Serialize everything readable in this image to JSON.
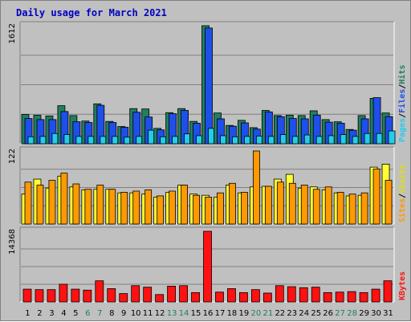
{
  "chart_data": {
    "type": "bar",
    "title": "Daily usage for March 2021",
    "categories": [
      "1",
      "2",
      "3",
      "4",
      "5",
      "6",
      "7",
      "8",
      "9",
      "10",
      "11",
      "12",
      "13",
      "14",
      "15",
      "16",
      "17",
      "18",
      "19",
      "20",
      "21",
      "22",
      "23",
      "24",
      "25",
      "26",
      "27",
      "28",
      "29",
      "30",
      "31"
    ],
    "weekend_days": [
      "6",
      "7",
      "13",
      "14",
      "20",
      "21",
      "27",
      "28"
    ],
    "panels": [
      {
        "name": "hits-files-pages",
        "ymax_label": "1612",
        "ymax": 1612,
        "axis_labels": [
          "Pages",
          "Files",
          "Hits"
        ],
        "series": [
          {
            "name": "Hits",
            "color": "#1f7f5f",
            "values": [
              400,
              390,
              380,
              520,
              385,
              310,
              545,
              305,
              235,
              480,
              475,
              210,
              425,
              480,
              305,
              1612,
              420,
              250,
              320,
              220,
              455,
              385,
              390,
              385,
              450,
              330,
              300,
              195,
              385,
              620,
              420
            ]
          },
          {
            "name": "Files",
            "color": "#1e4fe8",
            "values": [
              345,
              330,
              330,
              440,
              300,
              290,
              525,
              290,
              225,
              430,
              365,
              190,
              410,
              455,
              280,
              1580,
              340,
              240,
              285,
              200,
              435,
              370,
              345,
              340,
              390,
              295,
              280,
              185,
              340,
              630,
              370
            ]
          },
          {
            "name": "Pages",
            "color": "#22ccee",
            "values": [
              95,
              100,
              140,
              125,
              100,
              100,
              100,
              100,
              90,
              100,
              185,
              95,
              100,
              135,
              110,
              210,
              110,
              95,
              100,
              105,
              100,
              125,
              100,
              120,
              100,
              110,
              125,
              100,
              140,
              140,
              175
            ]
          }
        ]
      },
      {
        "name": "visits-sites",
        "ymax_label": "122",
        "ymax": 122,
        "axis_labels": [
          "Sites",
          "Visits"
        ],
        "series": [
          {
            "name": "Visits",
            "color": "#ffff33",
            "values": [
              50,
              75,
              60,
              80,
              62,
              57,
              58,
              58,
              52,
              52,
              50,
              45,
              53,
              65,
              50,
              48,
              45,
              65,
              52,
              62,
              63,
              75,
              83,
              60,
              62,
              57,
              52,
              47,
              48,
              95,
              100
            ]
          },
          {
            "name": "Sites",
            "color": "#ff9900",
            "values": [
              70,
              65,
              73,
              85,
              67,
              58,
              65,
              58,
              53,
              55,
              57,
              47,
              55,
              65,
              48,
              45,
              52,
              68,
              53,
              122,
              63,
              70,
              68,
              65,
              58,
              62,
              53,
              50,
              52,
              92,
              73
            ]
          }
        ]
      },
      {
        "name": "kbytes",
        "ymax_label": "14368",
        "ymax": 14368,
        "axis_labels": [
          "KBytes"
        ],
        "series": [
          {
            "name": "KBytes",
            "color": "#ff1111",
            "values": [
              2600,
              2500,
              2500,
              3600,
              2600,
              2400,
              4300,
              2700,
              1700,
              3300,
              3000,
              1500,
              3200,
              3300,
              1900,
              14368,
              2000,
              2700,
              1900,
              2500,
              1800,
              3300,
              3100,
              2900,
              3000,
              1900,
              2000,
              2100,
              1900,
              2600,
              4300
            ]
          }
        ]
      }
    ],
    "colors": {
      "weekday_label": "#000000",
      "weekend_label": "#1f7f5f",
      "pages_label": "#22ccee",
      "files_label": "#1e4fe8",
      "hits_label": "#1f7f5f",
      "sites_label": "#ff9900",
      "visits_label": "#e0e000",
      "kbytes_label": "#ff1111",
      "title": "#0000c0"
    }
  }
}
